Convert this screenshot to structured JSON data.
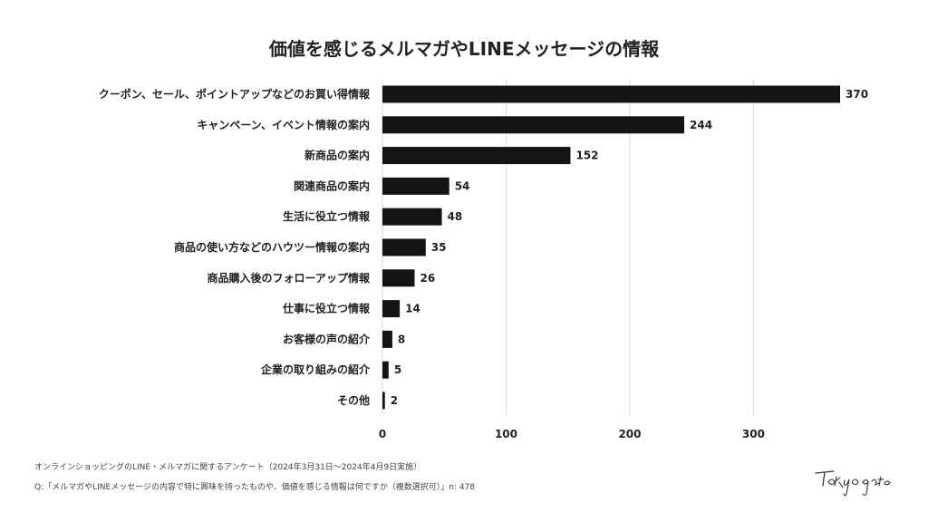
{
  "colors": {
    "bar": "#141414",
    "grid": "#d9d9d9",
    "text": "#222222"
  },
  "chart_data": {
    "type": "bar",
    "orientation": "horizontal",
    "title": "価値を感じるメルマガやLINEメッセージの情報",
    "categories": [
      "クーポン、セール、ポイントアップなどのお買い得情報",
      "キャンペーン、イベント情報の案内",
      "新商品の案内",
      "関連商品の案内",
      "生活に役立つ情報",
      "商品の使い方などのハウツー情報の案内",
      "商品購入後のフォローアップ情報",
      "仕事に役立つ情報",
      "お客様の声の紹介",
      "企業の取り組みの紹介",
      "その他"
    ],
    "values": [
      370,
      244,
      152,
      54,
      48,
      35,
      26,
      14,
      8,
      5,
      2
    ],
    "xlim": [
      0,
      370
    ],
    "xticks": [
      0,
      100,
      200,
      300
    ],
    "grid": true,
    "legend": "none"
  },
  "footer": {
    "survey": "オンラインショッピングのLINE・メルマガに関するアンケート（2024年3月31日〜2024年4月9日実施）",
    "question": "Q:「メルマガやLINEメッセージの内容で特に興味を持ったものや、価値を感じる情報は何ですか（複数選択可）」n: 478"
  },
  "brand": {
    "logo_text": "Tokyo gate"
  }
}
